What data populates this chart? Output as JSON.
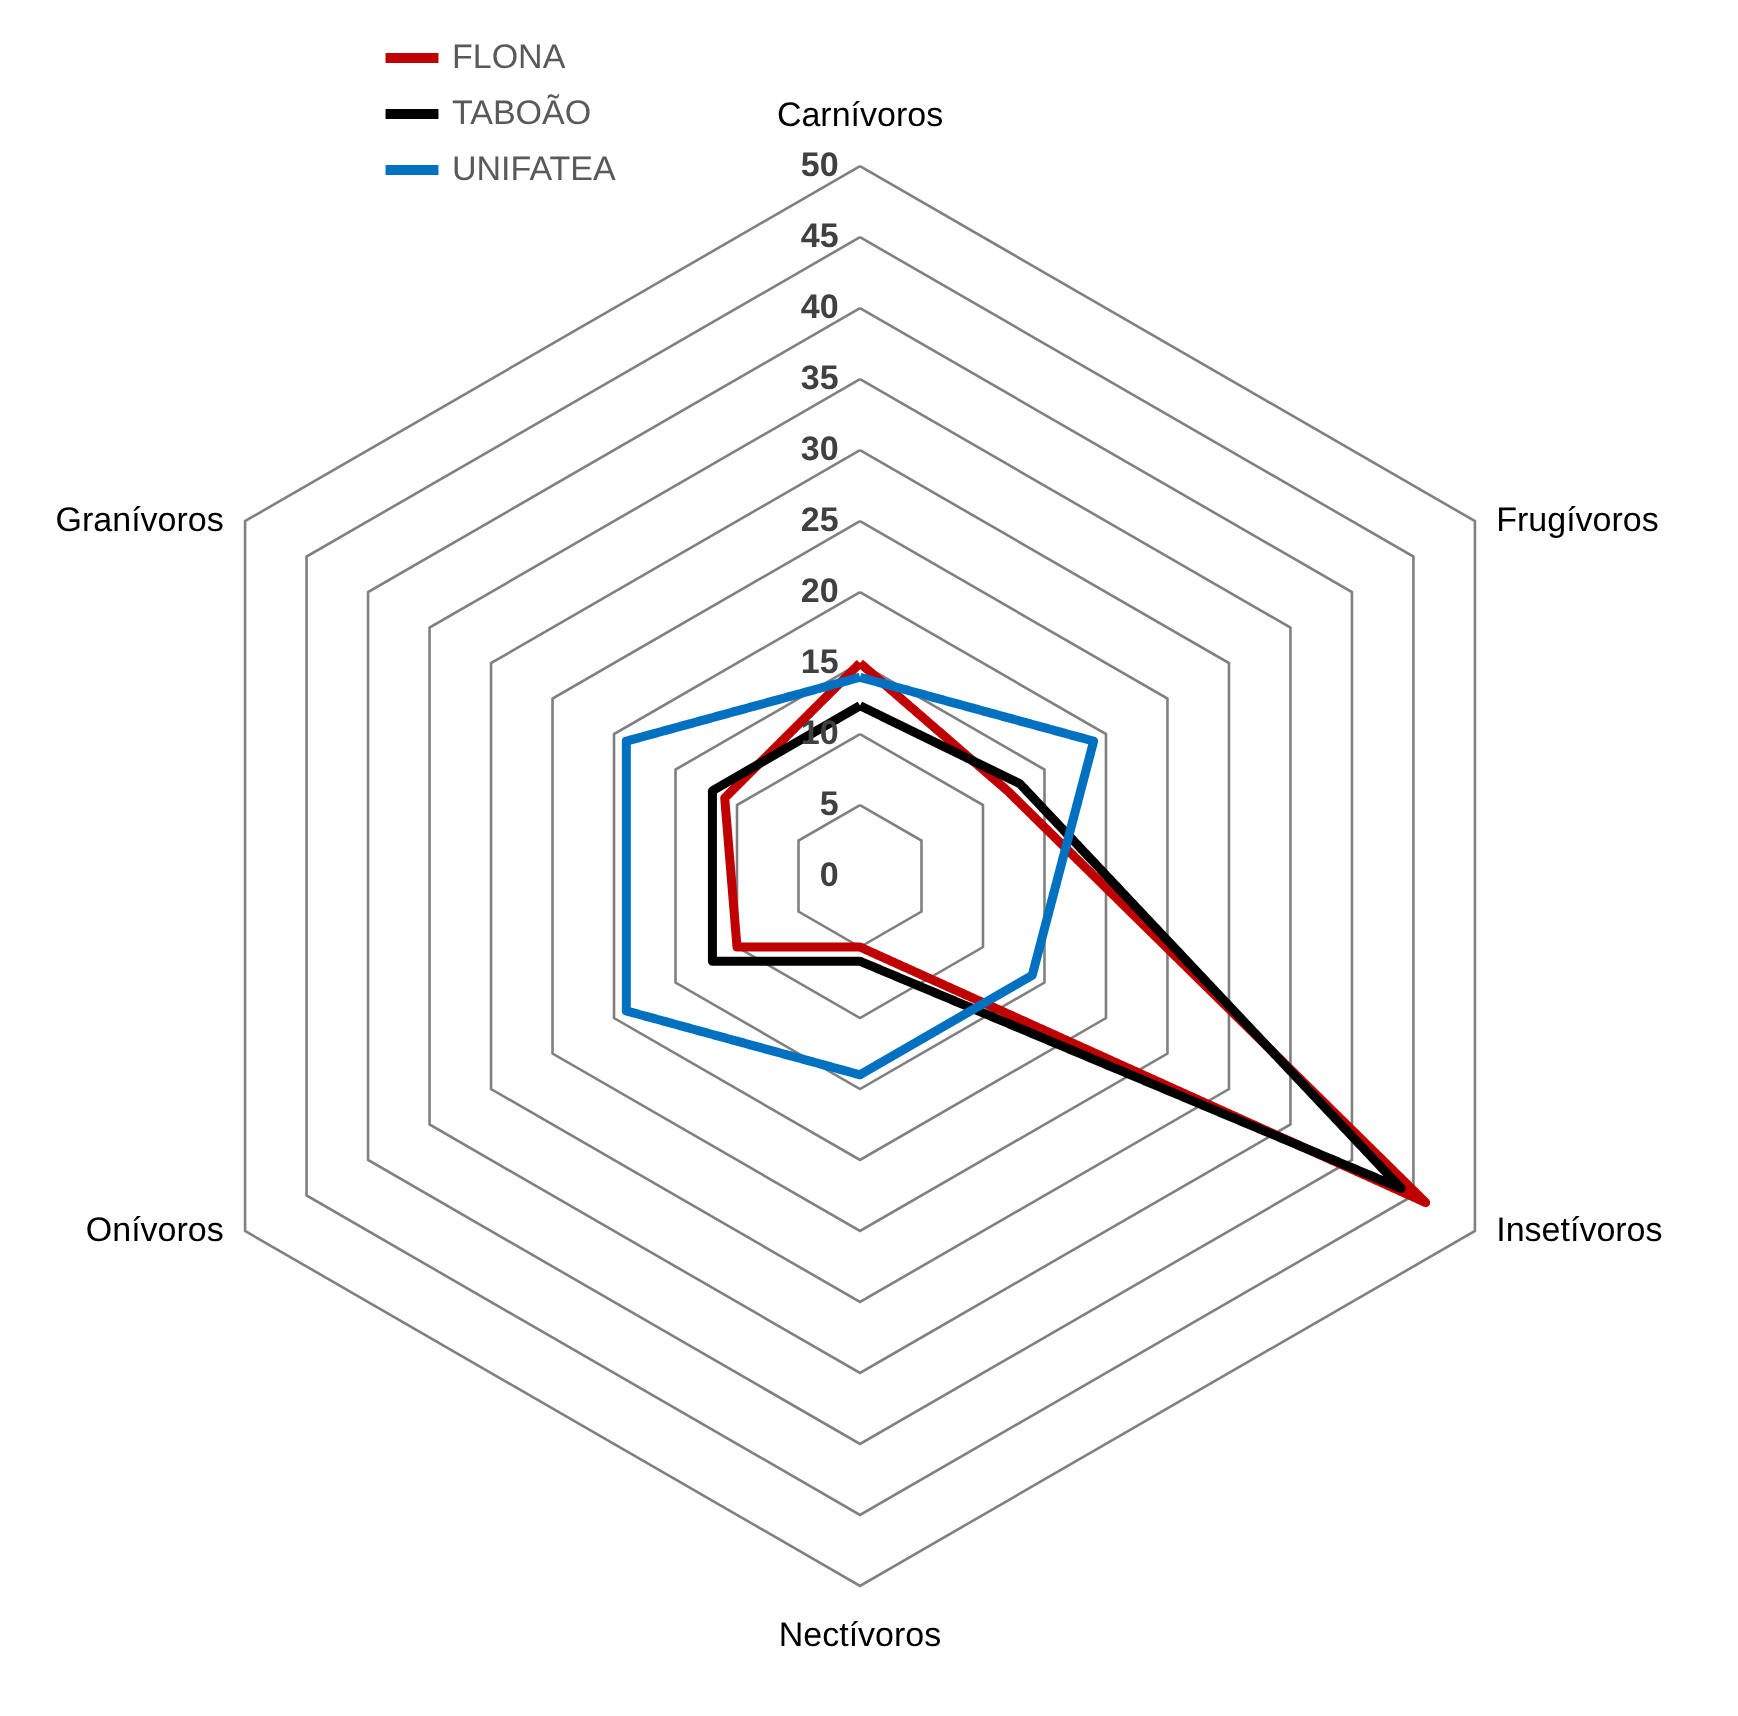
{
  "chart_data": {
    "type": "radar",
    "categories": [
      "Carnívoros",
      "Frugívoros",
      "Insetívoros",
      "Nectívoros",
      "Onívoros",
      "Granívoros"
    ],
    "series": [
      {
        "name": "FLONA",
        "color": "#c00000",
        "values": [
          15,
          12,
          46,
          5,
          10,
          11
        ]
      },
      {
        "name": "TABOÃO",
        "color": "#000000",
        "values": [
          12,
          13,
          44,
          6,
          12,
          12
        ]
      },
      {
        "name": "UNIFATEA",
        "color": "#0070c0",
        "values": [
          14,
          19,
          14,
          14,
          19,
          19
        ]
      }
    ],
    "ylim": [
      0,
      50
    ],
    "yticks": [
      0,
      5,
      10,
      15,
      20,
      25,
      30,
      35,
      40,
      45,
      50
    ],
    "grid": true,
    "legend": "top",
    "line_style": "solid",
    "marker": "none"
  }
}
